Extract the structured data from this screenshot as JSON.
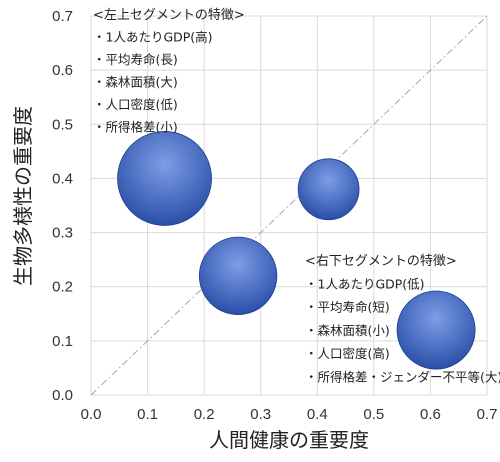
{
  "chart_data": {
    "type": "bubble",
    "xlabel": "人間健康の重要度",
    "ylabel": "生物多様性の重要度",
    "xlim": [
      0,
      0.7
    ],
    "ylim": [
      0,
      0.7
    ],
    "xticks": [
      "0.0",
      "0.1",
      "0.2",
      "0.3",
      "0.4",
      "0.5",
      "0.6",
      "0.7"
    ],
    "yticks": [
      "0.0",
      "0.1",
      "0.2",
      "0.3",
      "0.4",
      "0.5",
      "0.6",
      "0.7"
    ],
    "grid": true,
    "diagonal_reference_line": true,
    "points": [
      {
        "x": 0.13,
        "y": 0.4,
        "size": 1.0
      },
      {
        "x": 0.42,
        "y": 0.38,
        "size": 0.42
      },
      {
        "x": 0.26,
        "y": 0.22,
        "size": 0.68
      },
      {
        "x": 0.61,
        "y": 0.12,
        "size": 0.69
      }
    ],
    "annotations": [
      {
        "heading": "<左上セグメントの特徴>",
        "items": [
          "・1人あたりGDP(高)",
          "・平均寿命(長)",
          "・森林面積(大)",
          "・人口密度(低)",
          "・所得格差(小)"
        ]
      },
      {
        "heading": "<右下セグメントの特徴>",
        "items": [
          "・1人あたりGDP(低)",
          "・平均寿命(短)",
          "・森林面積(小)",
          "・人口密度(高)",
          "・所得格差・ジェンダー不平等(大)"
        ]
      }
    ],
    "colors": {
      "bubble_light": "#7d9ee6",
      "bubble_dark": "#2a4fa8",
      "grid": "#d9d9d9",
      "diagonal": "#a6a6a6"
    }
  }
}
